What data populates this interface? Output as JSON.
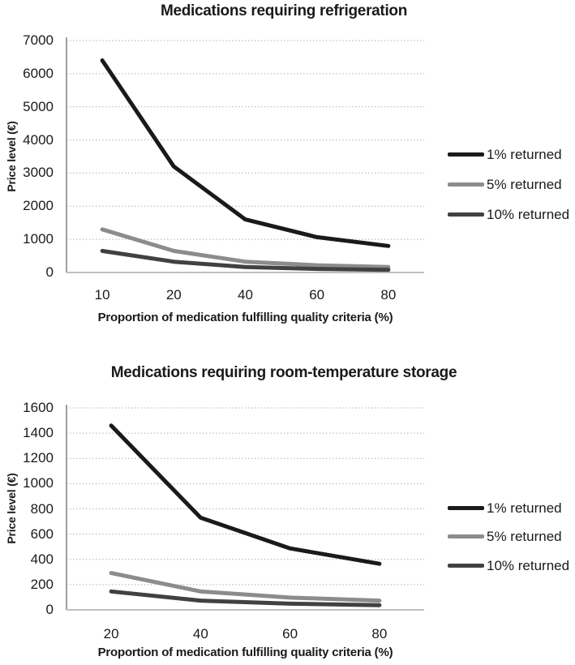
{
  "page": {
    "background": "#ffffff"
  },
  "style": {
    "gridline_color": "#b3b3b3",
    "y_axis_line_color": "#808080",
    "x_axis_line_color": "#bfbfbf",
    "text_color": "#1a1a1a"
  },
  "chart_data": [
    {
      "type": "line",
      "title": "Medications requiring refrigeration",
      "ylabel": "Price level (€)",
      "xlabel": "Proportion of medication fulfilling quality criteria (%)",
      "categories": [
        "10",
        "20",
        "40",
        "60",
        "80"
      ],
      "ylim": [
        0,
        7000
      ],
      "ytick_step": 1000,
      "yticks": [
        0,
        1000,
        2000,
        3000,
        4000,
        5000,
        6000,
        7000
      ],
      "grid": "horizontal-dotted",
      "legend_position": "right",
      "series": [
        {
          "name": "1% returned",
          "color": "#1a1a1a",
          "values": [
            6400,
            3200,
            1600,
            1067,
            800
          ]
        },
        {
          "name": "5% returned",
          "color": "#8c8c8c",
          "values": [
            1300,
            650,
            325,
            217,
            163
          ]
        },
        {
          "name": "10% returned",
          "color": "#414141",
          "values": [
            650,
            325,
            163,
            108,
            81
          ]
        }
      ]
    },
    {
      "type": "line",
      "title": "Medications requiring room-temperature storage",
      "ylabel": "Price level (€)",
      "xlabel": "Proportion of medication fulfilling quality criteria (%)",
      "categories": [
        "20",
        "40",
        "60",
        "80"
      ],
      "ylim": [
        0,
        1600
      ],
      "ytick_step": 200,
      "yticks": [
        0,
        200,
        400,
        600,
        800,
        1000,
        1200,
        1400,
        1600
      ],
      "grid": "horizontal-dotted",
      "legend_position": "right",
      "series": [
        {
          "name": "1% returned",
          "color": "#1a1a1a",
          "values": [
            1460,
            730,
            487,
            365
          ]
        },
        {
          "name": "5% returned",
          "color": "#8c8c8c",
          "values": [
            292,
            146,
            97,
            73
          ]
        },
        {
          "name": "10% returned",
          "color": "#414141",
          "values": [
            146,
            73,
            49,
            37
          ]
        }
      ]
    }
  ]
}
